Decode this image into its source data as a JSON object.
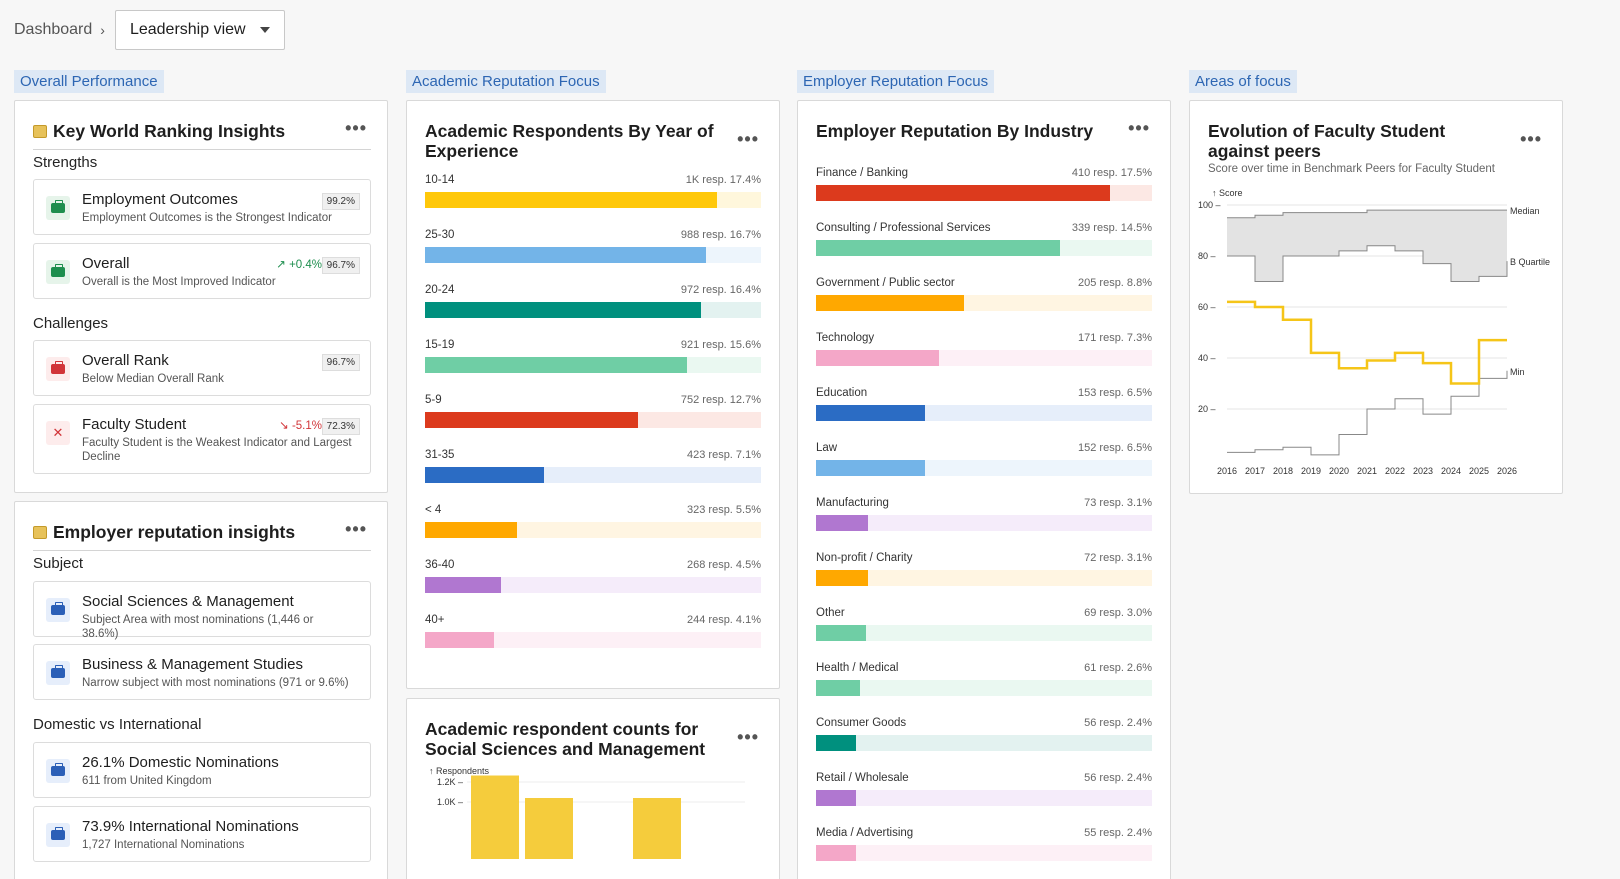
{
  "breadcrumb": {
    "root": "Dashboard",
    "view": "Leadership view"
  },
  "sections": [
    "Overall Performance",
    "Academic Reputation Focus",
    "Employer Reputation Focus",
    "Areas of focus"
  ],
  "key_insights": {
    "title": "Key World Ranking Insights",
    "strengths_label": "Strengths",
    "challenges_label": "Challenges",
    "items": [
      {
        "title": "Employment Outcomes",
        "desc": "Employment Outcomes is the Strongest Indicator",
        "badge": "99.2%",
        "change": "",
        "tone": "green"
      },
      {
        "title": "Overall",
        "desc": "Overall is the Most Improved Indicator",
        "badge": "96.7%",
        "change": "+0.4%",
        "tone": "green"
      },
      {
        "title": "Overall Rank",
        "desc": "Below Median Overall Rank",
        "badge": "96.7%",
        "change": "",
        "tone": "red"
      },
      {
        "title": "Faculty Student",
        "desc": "Faculty Student is the Weakest Indicator and Largest Decline",
        "badge": "72.3%",
        "change": "-5.1%",
        "tone": "red"
      }
    ]
  },
  "employer_insights": {
    "title": "Employer reputation insights",
    "subject_label": "Subject",
    "domestic_label": "Domestic vs International",
    "items": [
      {
        "title": "Social Sciences & Management",
        "desc": "Subject Area with most nominations (1,446 or 38.6%)"
      },
      {
        "title": "Business & Management Studies",
        "desc": "Narrow subject with most nominations (971 or 9.6%)"
      },
      {
        "title": "26.1% Domestic Nominations",
        "desc": "611 from United Kingdom"
      },
      {
        "title": "73.9% International Nominations",
        "desc": "1,727 International Nominations"
      }
    ]
  },
  "academic_experience": {
    "title": "Academic Respondents By Year of Experience",
    "rows": [
      {
        "label": "10-14",
        "value": "1K resp. 17.4%",
        "pct": 17.4,
        "color": "#ffc80a",
        "bg": "#fff7dc"
      },
      {
        "label": "25-30",
        "value": "988 resp. 16.7%",
        "pct": 16.7,
        "color": "#73b4e8",
        "bg": "#edf5fc"
      },
      {
        "label": "20-24",
        "value": "972 resp. 16.4%",
        "pct": 16.4,
        "color": "#00907e",
        "bg": "#e3f2f0"
      },
      {
        "label": "15-19",
        "value": "921 resp. 15.6%",
        "pct": 15.6,
        "color": "#6fcea5",
        "bg": "#eaf8f1"
      },
      {
        "label": "5-9",
        "value": "752 resp. 12.7%",
        "pct": 12.7,
        "color": "#dc3a1d",
        "bg": "#fce8e4"
      },
      {
        "label": "31-35",
        "value": "423 resp. 7.1%",
        "pct": 7.1,
        "color": "#2b6cc4",
        "bg": "#e6eefa"
      },
      {
        "label": "< 4",
        "value": "323 resp. 5.5%",
        "pct": 5.5,
        "color": "#ffa800",
        "bg": "#fff5e2"
      },
      {
        "label": "36-40",
        "value": "268 resp. 4.5%",
        "pct": 4.5,
        "color": "#b077d0",
        "bg": "#f5ecfa"
      },
      {
        "label": "40+",
        "value": "244 resp. 4.1%",
        "pct": 4.1,
        "color": "#f4a7c8",
        "bg": "#fdf0f6"
      }
    ]
  },
  "social_counts": {
    "title": "Academic respondent counts for Social Sciences and Management",
    "ylabel": "Respondents",
    "ticks": [
      "1.2K",
      "1.0K"
    ],
    "chart_data": {
      "type": "bar",
      "ylabel": "Respondents",
      "values": [
        1265,
        1040,
        1040
      ],
      "ylim": [
        0,
        1300
      ]
    }
  },
  "employer_industry": {
    "title": "Employer Reputation By Industry",
    "rows": [
      {
        "label": "Finance / Banking",
        "value": "410 resp. 17.5%",
        "pct": 17.5,
        "color": "#dc3a1d",
        "bg": "#fce8e4"
      },
      {
        "label": "Consulting / Professional Services",
        "value": "339 resp. 14.5%",
        "pct": 14.5,
        "color": "#6fcea5",
        "bg": "#eaf8f1"
      },
      {
        "label": "Government / Public sector",
        "value": "205 resp. 8.8%",
        "pct": 8.8,
        "color": "#ffa800",
        "bg": "#fff5e2"
      },
      {
        "label": "Technology",
        "value": "171 resp. 7.3%",
        "pct": 7.3,
        "color": "#f4a7c8",
        "bg": "#fdf0f6"
      },
      {
        "label": "Education",
        "value": "153 resp. 6.5%",
        "pct": 6.5,
        "color": "#2b6cc4",
        "bg": "#e6eefa"
      },
      {
        "label": "Law",
        "value": "152 resp. 6.5%",
        "pct": 6.5,
        "color": "#73b4e8",
        "bg": "#edf5fc"
      },
      {
        "label": "Manufacturing",
        "value": "73 resp. 3.1%",
        "pct": 3.1,
        "color": "#b077d0",
        "bg": "#f5ecfa"
      },
      {
        "label": "Non-profit / Charity",
        "value": "72 resp. 3.1%",
        "pct": 3.1,
        "color": "#ffa800",
        "bg": "#fff5e2"
      },
      {
        "label": "Other",
        "value": "69 resp. 3.0%",
        "pct": 3.0,
        "color": "#6fcea5",
        "bg": "#eaf8f1"
      },
      {
        "label": "Health / Medical",
        "value": "61 resp. 2.6%",
        "pct": 2.6,
        "color": "#6fcea5",
        "bg": "#eaf8f1"
      },
      {
        "label": "Consumer Goods",
        "value": "56 resp. 2.4%",
        "pct": 2.4,
        "color": "#00907e",
        "bg": "#e3f2f0"
      },
      {
        "label": "Retail / Wholesale",
        "value": "56 resp. 2.4%",
        "pct": 2.4,
        "color": "#b077d0",
        "bg": "#f5ecfa"
      },
      {
        "label": "Media / Advertising",
        "value": "55 resp. 2.4%",
        "pct": 2.4,
        "color": "#f4a7c8",
        "bg": "#fdf0f6"
      }
    ]
  },
  "faculty_evolution": {
    "title": "Evolution of Faculty Student against peers",
    "subtitle": "Score over time in Benchmark Peers for Faculty Student",
    "ylabel": "Score",
    "chart_data": {
      "type": "line",
      "x": [
        2016,
        2017,
        2018,
        2019,
        2020,
        2021,
        2022,
        2023,
        2024,
        2025,
        2026
      ],
      "ylim": [
        0,
        100
      ],
      "yticks": [
        20,
        40,
        60,
        80,
        100
      ],
      "series": [
        {
          "name": "Median",
          "values": [
            95,
            96,
            97,
            97,
            97,
            98,
            98,
            98,
            98,
            98,
            98
          ]
        },
        {
          "name": "B Quartile",
          "values": [
            80,
            70,
            80,
            80,
            82,
            84,
            82,
            77,
            70,
            72,
            78
          ]
        },
        {
          "name": "Min",
          "values": [
            3,
            4,
            5,
            2,
            10,
            20,
            24,
            18,
            25,
            32,
            35
          ]
        },
        {
          "name": "",
          "values": [
            62,
            60,
            55,
            42,
            36,
            39,
            42,
            38,
            30,
            47,
            47
          ],
          "highlight": true
        }
      ]
    }
  }
}
